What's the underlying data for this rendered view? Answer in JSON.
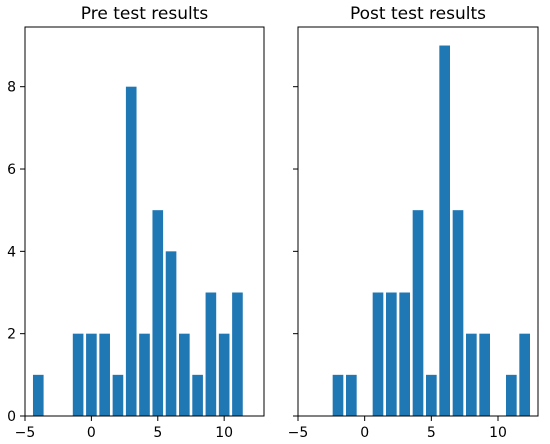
{
  "chart_data": [
    {
      "type": "bar",
      "title": "Pre test results",
      "x": [
        -4,
        -1,
        0,
        1,
        2,
        3,
        4,
        5,
        6,
        7,
        8,
        9,
        10,
        11
      ],
      "values": [
        1,
        2,
        2,
        2,
        1,
        8,
        2,
        5,
        4,
        2,
        1,
        3,
        2,
        3
      ],
      "color": "#1f77b4",
      "xlim": [
        -5,
        13
      ],
      "ylim": [
        0,
        9.45
      ],
      "xticks": [
        -5,
        0,
        5,
        10
      ],
      "yticks": [
        0,
        2,
        4,
        6,
        8
      ],
      "grid": false
    },
    {
      "type": "bar",
      "title": "Post test results",
      "x": [
        -2,
        -1,
        1,
        2,
        3,
        4,
        5,
        6,
        7,
        8,
        9,
        11,
        12
      ],
      "values": [
        1,
        1,
        3,
        3,
        3,
        5,
        1,
        9,
        5,
        2,
        2,
        1,
        2
      ],
      "color": "#1f77b4",
      "xlim": [
        -5,
        13
      ],
      "ylim": [
        0,
        9.45
      ],
      "xticks": [
        -5,
        0,
        5,
        10
      ],
      "yticks": [
        0,
        2,
        4,
        6,
        8
      ],
      "grid": false,
      "shared_y": true
    }
  ]
}
